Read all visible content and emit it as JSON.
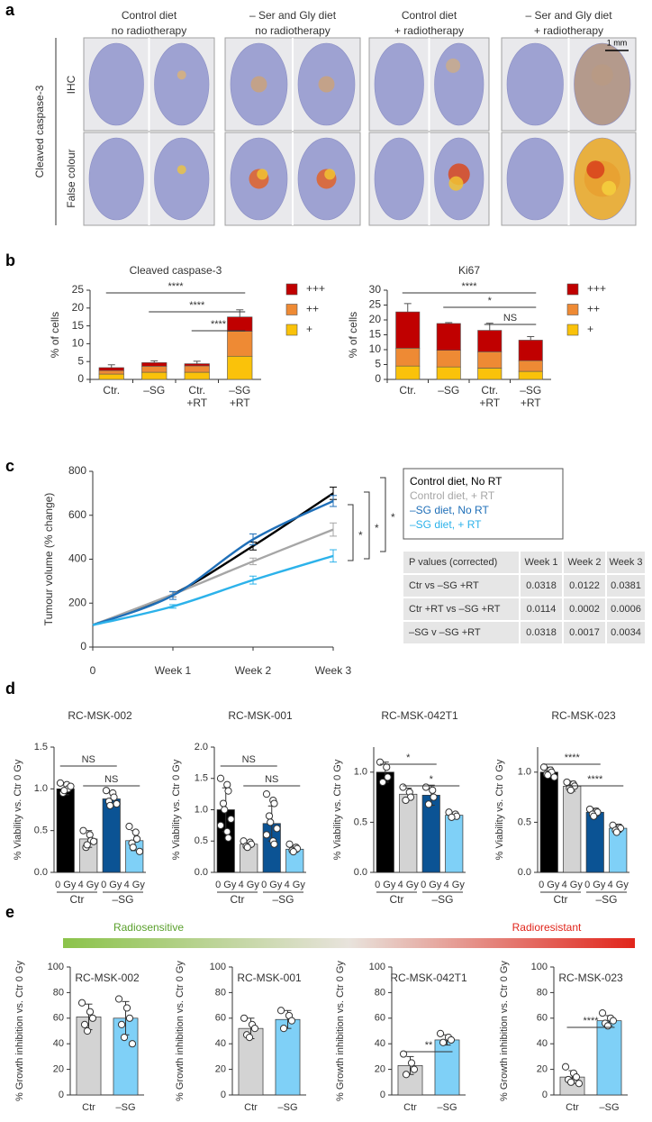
{
  "panel_labels": [
    "a",
    "b",
    "c",
    "d",
    "e"
  ],
  "panel_a": {
    "columns": [
      [
        "Control diet",
        "no radiotherapy"
      ],
      [
        "– Ser and Gly diet",
        "no radiotherapy"
      ],
      [
        "Control diet",
        "+ radiotherapy"
      ],
      [
        "– Ser and Gly diet",
        "+ radiotherapy"
      ]
    ],
    "row_group": "Cleaved caspase-3",
    "rows": [
      "IHC",
      "False colour"
    ],
    "scale_bar": "1 mm"
  },
  "chart_data": [
    {
      "type": "stacked_bar",
      "title": "Cleaved caspase-3",
      "y_label": "% of cells",
      "categories": [
        [
          "Ctr."
        ],
        [
          "–SG"
        ],
        [
          "Ctr.",
          "+RT"
        ],
        [
          "–SG",
          "+RT"
        ]
      ],
      "series": [
        {
          "name": "+",
          "color": "#fac20a",
          "values": [
            1.5,
            2.0,
            2.0,
            6.5
          ],
          "errors": [
            0.4,
            0.5,
            0.4,
            3.5
          ]
        },
        {
          "name": "++",
          "color": "#ee8a34",
          "values": [
            1.0,
            1.7,
            1.8,
            7.0
          ],
          "errors": [
            0.3,
            0.5,
            0.5,
            3.5
          ]
        },
        {
          "name": "+++",
          "color": "#c00000",
          "values": [
            0.8,
            1.0,
            0.6,
            4.0
          ],
          "errors": [
            0.8,
            0.5,
            0.7,
            2.0
          ]
        }
      ],
      "ylim": [
        0,
        25
      ],
      "yticks": [
        0,
        5,
        10,
        15,
        20,
        25
      ],
      "annotations": [
        "****",
        "****",
        "****"
      ]
    },
    {
      "type": "stacked_bar",
      "title": "Ki67",
      "y_label": "% of cells",
      "categories": [
        [
          "Ctr."
        ],
        [
          "–SG"
        ],
        [
          "Ctr.",
          "+RT"
        ],
        [
          "–SG",
          "+RT"
        ]
      ],
      "series": [
        {
          "name": "+",
          "color": "#fac20a",
          "values": [
            4.5,
            4.2,
            3.8,
            2.7
          ],
          "errors": [
            0.4,
            0.3,
            0.6,
            0.3
          ]
        },
        {
          "name": "++",
          "color": "#ee8a34",
          "values": [
            6.0,
            5.6,
            5.5,
            3.6
          ],
          "errors": [
            0.8,
            0.2,
            1.3,
            0.3
          ]
        },
        {
          "name": "+++",
          "color": "#c00000",
          "values": [
            12.2,
            9.0,
            7.2,
            6.9
          ],
          "errors": [
            2.8,
            0.3,
            2.4,
            1.2
          ]
        }
      ],
      "ylim": [
        0,
        30
      ],
      "yticks": [
        0,
        5,
        10,
        15,
        20,
        25,
        30
      ],
      "annotations": [
        "****",
        "*",
        "NS"
      ]
    },
    {
      "type": "line",
      "y_label": "Tumour volume (% change)",
      "categories": [
        "0",
        "Week 1",
        "Week 2",
        "Week 3"
      ],
      "series": [
        {
          "name": "Control diet, No RT",
          "color": "#000000",
          "values": [
            100,
            240,
            460,
            700
          ],
          "errors": [
            0,
            12,
            18,
            28
          ]
        },
        {
          "name": "Control diet, + RT",
          "color": "#a6a6a6",
          "values": [
            100,
            240,
            390,
            535
          ],
          "errors": [
            0,
            12,
            15,
            30
          ]
        },
        {
          "name": "–SG diet, No RT",
          "color": "#1f6fb8",
          "values": [
            100,
            235,
            490,
            665
          ],
          "errors": [
            0,
            18,
            25,
            25
          ]
        },
        {
          "name": "–SG diet, + RT",
          "color": "#2cb2ea",
          "values": [
            100,
            185,
            305,
            415
          ],
          "errors": [
            0,
            8,
            18,
            28
          ]
        }
      ],
      "ylim": [
        0,
        800
      ],
      "yticks": [
        0,
        200,
        400,
        600,
        800
      ],
      "annotations": [
        "*",
        "*",
        "*"
      ]
    },
    {
      "type": "dot_bar",
      "title": "RC-MSK-002",
      "y_label": "% Viability vs. Ctr 0 Gy",
      "categories": [
        "0 Gy",
        "4 Gy",
        "0 Gy",
        "4 Gy"
      ],
      "groups": [
        "Ctr",
        "–SG"
      ],
      "colors": [
        "#000000",
        "#d3d3d3",
        "#0b5394",
        "#7fd0f7"
      ],
      "values": [
        1.0,
        0.4,
        0.88,
        0.38
      ],
      "errors": [
        0.07,
        0.1,
        0.08,
        0.12
      ],
      "points": [
        [
          1.07,
          1.05,
          1.0,
          0.95,
          0.98,
          1.03
        ],
        [
          0.5,
          0.45,
          0.38,
          0.3,
          0.33,
          0.37
        ],
        [
          0.98,
          0.95,
          0.9,
          0.85,
          0.8,
          0.82
        ],
        [
          0.55,
          0.48,
          0.4,
          0.35,
          0.3,
          0.25
        ]
      ],
      "ylim": [
        0,
        1.5
      ],
      "yticks": [
        {
          "value": 0,
          "label": "0.0"
        },
        0.5,
        {
          "value": 1,
          "label": "1.0"
        },
        1.5
      ],
      "annotations": [
        "NS",
        "NS"
      ]
    },
    {
      "type": "dot_bar",
      "title": "RC-MSK-001",
      "y_label": "% Viability vs. Ctr 0 Gy",
      "categories": [
        "0 Gy",
        "4 Gy",
        "0 Gy",
        "4 Gy"
      ],
      "groups": [
        "Ctr",
        "–SG"
      ],
      "colors": [
        "#000000",
        "#d3d3d3",
        "#0b5394",
        "#7fd0f7"
      ],
      "values": [
        1.0,
        0.45,
        0.78,
        0.37
      ],
      "errors": [
        0.35,
        0.05,
        0.28,
        0.05
      ],
      "points": [
        [
          1.5,
          1.4,
          1.3,
          1.1,
          1.0,
          0.85,
          0.75,
          0.65,
          0.55
        ],
        [
          0.5,
          0.48,
          0.45,
          0.42,
          0.4
        ],
        [
          1.25,
          1.15,
          1.1,
          0.9,
          0.8,
          0.7,
          0.6,
          0.5,
          0.45
        ],
        [
          0.45,
          0.4,
          0.38,
          0.35,
          0.33
        ]
      ],
      "ylim": [
        0,
        2
      ],
      "yticks": [
        {
          "value": 0,
          "label": "0.0"
        },
        0.5,
        {
          "value": 1,
          "label": "1.0"
        },
        1.5,
        {
          "value": 2,
          "label": "2.0"
        }
      ],
      "annotations": [
        "NS",
        "NS"
      ]
    },
    {
      "type": "dot_bar",
      "title": "RC-MSK-042T1",
      "y_label": "% Viability vs. Ctr 0 Gy",
      "categories": [
        "0 Gy",
        "4 Gy",
        "0 Gy",
        "4 Gy"
      ],
      "groups": [
        "Ctr",
        "–SG"
      ],
      "colors": [
        "#000000",
        "#d3d3d3",
        "#0b5394",
        "#7fd0f7"
      ],
      "values": [
        1.0,
        0.78,
        0.77,
        0.57
      ],
      "errors": [
        0.1,
        0.06,
        0.1,
        0.03
      ],
      "points": [
        [
          1.1,
          1.05,
          0.95,
          0.9
        ],
        [
          0.85,
          0.8,
          0.75,
          0.72
        ],
        [
          0.85,
          0.82,
          0.75,
          0.68
        ],
        [
          0.6,
          0.58,
          0.56,
          0.55
        ]
      ],
      "ylim": [
        0,
        1.25
      ],
      "yticks": [
        {
          "value": 0,
          "label": "0.0"
        },
        0.5,
        {
          "value": 1,
          "label": "1.0"
        }
      ],
      "annotations": [
        "*",
        "*"
      ]
    },
    {
      "type": "dot_bar",
      "title": "RC-MSK-023",
      "y_label": "% Viability vs. Ctr 0 Gy",
      "categories": [
        "0 Gy",
        "4 Gy",
        "0 Gy",
        "4 Gy"
      ],
      "groups": [
        "Ctr",
        "–SG"
      ],
      "colors": [
        "#000000",
        "#d3d3d3",
        "#0b5394",
        "#7fd0f7"
      ],
      "values": [
        1.0,
        0.86,
        0.6,
        0.44
      ],
      "errors": [
        0.05,
        0.05,
        0.04,
        0.04
      ],
      "points": [
        [
          1.05,
          1.02,
          1.0,
          0.98,
          0.97,
          0.95
        ],
        [
          0.9,
          0.88,
          0.86,
          0.84,
          0.82
        ],
        [
          0.63,
          0.61,
          0.6,
          0.58,
          0.56
        ],
        [
          0.47,
          0.45,
          0.44,
          0.42,
          0.4
        ]
      ],
      "ylim": [
        0,
        1.25
      ],
      "yticks": [
        {
          "value": 0,
          "label": "0.0"
        },
        0.5,
        {
          "value": 1,
          "label": "1.0"
        }
      ],
      "annotations": [
        "****",
        "****"
      ]
    },
    {
      "type": "dot_bar",
      "title": "RC-MSK-002",
      "y_label": "% Growth inhibition vs. Ctr 0 Gy",
      "categories": [
        "Ctr",
        "–SG"
      ],
      "colors": [
        "#d3d3d3",
        "#7fd0f7"
      ],
      "values": [
        61,
        60
      ],
      "errors": [
        10,
        13
      ],
      "points": [
        [
          72,
          65,
          60,
          55,
          50
        ],
        [
          75,
          68,
          60,
          55,
          45,
          40
        ]
      ],
      "ylim": [
        0,
        100
      ],
      "yticks": [
        0,
        20,
        40,
        60,
        80,
        100
      ]
    },
    {
      "type": "dot_bar",
      "title": "RC-MSK-001",
      "y_label": "% Growth inhibition vs. Ctr 0 Gy",
      "categories": [
        "Ctr",
        "–SG"
      ],
      "colors": [
        "#d3d3d3",
        "#7fd0f7"
      ],
      "values": [
        52,
        59
      ],
      "errors": [
        8,
        7
      ],
      "points": [
        [
          60,
          55,
          52,
          47,
          45
        ],
        [
          66,
          62,
          58,
          52
        ]
      ],
      "ylim": [
        0,
        100
      ],
      "yticks": [
        0,
        20,
        40,
        60,
        80,
        100
      ]
    },
    {
      "type": "dot_bar",
      "title": "RC-MSK-042T1",
      "y_label": "% Growth inhibition vs. Ctr 0 Gy",
      "categories": [
        "Ctr",
        "–SG"
      ],
      "colors": [
        "#d3d3d3",
        "#7fd0f7"
      ],
      "values": [
        23,
        43
      ],
      "errors": [
        7,
        4
      ],
      "points": [
        [
          32,
          25,
          20,
          16
        ],
        [
          48,
          45,
          43,
          41
        ]
      ],
      "ylim": [
        0,
        100
      ],
      "yticks": [
        0,
        20,
        40,
        60,
        80,
        100
      ],
      "annotations": [
        "**"
      ]
    },
    {
      "type": "dot_bar",
      "title": "RC-MSK-023",
      "y_label": "% Growth inhibition vs. Ctr 0 Gy",
      "categories": [
        "Ctr",
        "–SG"
      ],
      "colors": [
        "#d3d3d3",
        "#7fd0f7"
      ],
      "values": [
        14,
        58
      ],
      "errors": [
        5,
        4
      ],
      "points": [
        [
          22,
          17,
          14,
          12,
          10,
          9
        ],
        [
          64,
          60,
          58,
          56,
          54
        ]
      ],
      "ylim": [
        0,
        100
      ],
      "yticks": [
        0,
        20,
        40,
        60,
        80,
        100
      ],
      "annotations": [
        "****"
      ]
    }
  ],
  "table": {
    "header": [
      "P values (corrected)",
      "Week 1",
      "Week 2",
      "Week 3"
    ],
    "rows": [
      [
        "Ctr vs –SG +RT",
        0.0318,
        0.0122,
        0.0381
      ],
      [
        "Ctr +RT vs –SG +RT",
        0.0114,
        0.0002,
        0.0006
      ],
      [
        "–SG v –SG +RT",
        0.0318,
        0.0017,
        0.0034
      ]
    ]
  },
  "gradient": {
    "labels": [
      "Radiosensitive",
      "Radioresistant"
    ]
  }
}
